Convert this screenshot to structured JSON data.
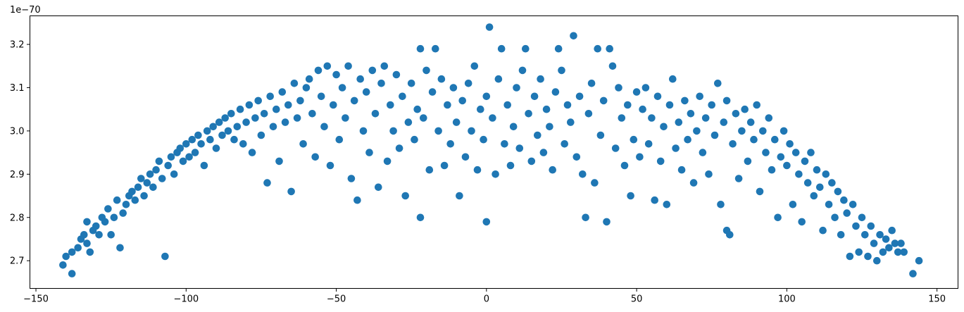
{
  "chart_data": {
    "type": "scatter",
    "title": "",
    "xlabel": "",
    "ylabel": "",
    "y_offset_label": "1e−70",
    "xlim": [
      -152,
      157
    ],
    "ylim": [
      2.636,
      3.266
    ],
    "x_ticks": [
      -150,
      -100,
      -50,
      0,
      50,
      100,
      150
    ],
    "x_tick_labels": [
      "−150",
      "−100",
      "−50",
      "0",
      "50",
      "100",
      "150"
    ],
    "y_ticks": [
      2.7,
      2.8,
      2.9,
      3.0,
      3.1,
      3.2
    ],
    "y_tick_labels": [
      "2.7",
      "2.8",
      "2.9",
      "3.0",
      "3.1",
      "3.2"
    ],
    "grid": false,
    "marker_color": "#1f77b4",
    "series": [
      {
        "points": [
          [
            -141,
            2.69
          ],
          [
            -140,
            2.71
          ],
          [
            -138,
            2.67
          ],
          [
            -138,
            2.72
          ],
          [
            -136,
            2.73
          ],
          [
            -135,
            2.75
          ],
          [
            -134,
            2.76
          ],
          [
            -133,
            2.74
          ],
          [
            -133,
            2.79
          ],
          [
            -132,
            2.72
          ],
          [
            -131,
            2.77
          ],
          [
            -130,
            2.78
          ],
          [
            -129,
            2.76
          ],
          [
            -128,
            2.8
          ],
          [
            -127,
            2.79
          ],
          [
            -126,
            2.82
          ],
          [
            -125,
            2.76
          ],
          [
            -124,
            2.8
          ],
          [
            -123,
            2.84
          ],
          [
            -122,
            2.73
          ],
          [
            -121,
            2.81
          ],
          [
            -120,
            2.83
          ],
          [
            -119,
            2.85
          ],
          [
            -118,
            2.86
          ],
          [
            -117,
            2.84
          ],
          [
            -116,
            2.87
          ],
          [
            -115,
            2.89
          ],
          [
            -114,
            2.85
          ],
          [
            -113,
            2.88
          ],
          [
            -112,
            2.9
          ],
          [
            -111,
            2.87
          ],
          [
            -110,
            2.91
          ],
          [
            -109,
            2.93
          ],
          [
            -108,
            2.89
          ],
          [
            -107,
            2.71
          ],
          [
            -106,
            2.92
          ],
          [
            -105,
            2.94
          ],
          [
            -104,
            2.9
          ],
          [
            -103,
            2.95
          ],
          [
            -102,
            2.96
          ],
          [
            -101,
            2.93
          ],
          [
            -100,
            2.97
          ],
          [
            -99,
            2.94
          ],
          [
            -98,
            2.98
          ],
          [
            -97,
            2.95
          ],
          [
            -96,
            2.99
          ],
          [
            -95,
            2.97
          ],
          [
            -94,
            2.92
          ],
          [
            -93,
            3.0
          ],
          [
            -92,
            2.98
          ],
          [
            -91,
            3.01
          ],
          [
            -90,
            2.96
          ],
          [
            -89,
            3.02
          ],
          [
            -88,
            2.99
          ],
          [
            -87,
            3.03
          ],
          [
            -86,
            3.0
          ],
          [
            -85,
            3.04
          ],
          [
            -84,
            2.98
          ],
          [
            -83,
            3.01
          ],
          [
            -82,
            3.05
          ],
          [
            -81,
            2.97
          ],
          [
            -80,
            3.02
          ],
          [
            -79,
            3.06
          ],
          [
            -78,
            2.95
          ],
          [
            -77,
            3.03
          ],
          [
            -76,
            3.07
          ],
          [
            -75,
            2.99
          ],
          [
            -74,
            3.04
          ],
          [
            -73,
            2.88
          ],
          [
            -72,
            3.08
          ],
          [
            -71,
            3.01
          ],
          [
            -70,
            3.05
          ],
          [
            -69,
            2.93
          ],
          [
            -68,
            3.09
          ],
          [
            -67,
            3.02
          ],
          [
            -66,
            3.06
          ],
          [
            -65,
            2.86
          ],
          [
            -64,
            3.11
          ],
          [
            -63,
            3.03
          ],
          [
            -62,
            3.07
          ],
          [
            -61,
            2.97
          ],
          [
            -60,
            3.1
          ],
          [
            -59,
            3.12
          ],
          [
            -58,
            3.04
          ],
          [
            -57,
            2.94
          ],
          [
            -56,
            3.14
          ],
          [
            -55,
            3.08
          ],
          [
            -54,
            3.01
          ],
          [
            -53,
            3.15
          ],
          [
            -52,
            2.92
          ],
          [
            -51,
            3.06
          ],
          [
            -50,
            3.13
          ],
          [
            -49,
            2.98
          ],
          [
            -48,
            3.1
          ],
          [
            -47,
            3.03
          ],
          [
            -46,
            3.15
          ],
          [
            -45,
            2.89
          ],
          [
            -44,
            3.07
          ],
          [
            -43,
            2.84
          ],
          [
            -42,
            3.12
          ],
          [
            -41,
            3.0
          ],
          [
            -40,
            3.09
          ],
          [
            -39,
            2.95
          ],
          [
            -38,
            3.14
          ],
          [
            -37,
            3.04
          ],
          [
            -36,
            2.87
          ],
          [
            -35,
            3.11
          ],
          [
            -34,
            3.15
          ],
          [
            -33,
            2.93
          ],
          [
            -32,
            3.06
          ],
          [
            -31,
            3.0
          ],
          [
            -30,
            3.13
          ],
          [
            -29,
            2.96
          ],
          [
            -28,
            3.08
          ],
          [
            -27,
            2.85
          ],
          [
            -26,
            3.02
          ],
          [
            -25,
            3.11
          ],
          [
            -24,
            2.98
          ],
          [
            -23,
            3.05
          ],
          [
            -22,
            3.19
          ],
          [
            -22,
            2.8
          ],
          [
            -21,
            3.03
          ],
          [
            -20,
            3.14
          ],
          [
            -19,
            2.91
          ],
          [
            -18,
            3.09
          ],
          [
            -17,
            3.19
          ],
          [
            -16,
            3.0
          ],
          [
            -15,
            3.12
          ],
          [
            -14,
            2.92
          ],
          [
            -13,
            3.06
          ],
          [
            -12,
            2.97
          ],
          [
            -11,
            3.1
          ],
          [
            -10,
            3.02
          ],
          [
            -9,
            2.85
          ],
          [
            -8,
            3.07
          ],
          [
            -7,
            2.94
          ],
          [
            -6,
            3.11
          ],
          [
            -5,
            3.0
          ],
          [
            -4,
            3.15
          ],
          [
            -3,
            2.91
          ],
          [
            -2,
            3.05
          ],
          [
            -1,
            2.98
          ],
          [
            0,
            3.08
          ],
          [
            0,
            2.79
          ],
          [
            1,
            3.24
          ],
          [
            2,
            3.03
          ],
          [
            3,
            2.9
          ],
          [
            4,
            3.12
          ],
          [
            5,
            3.19
          ],
          [
            6,
            2.97
          ],
          [
            7,
            3.06
          ],
          [
            8,
            2.92
          ],
          [
            9,
            3.01
          ],
          [
            10,
            3.1
          ],
          [
            11,
            2.96
          ],
          [
            12,
            3.14
          ],
          [
            13,
            3.19
          ],
          [
            14,
            3.04
          ],
          [
            15,
            2.93
          ],
          [
            16,
            3.08
          ],
          [
            17,
            2.99
          ],
          [
            18,
            3.12
          ],
          [
            19,
            2.95
          ],
          [
            20,
            3.05
          ],
          [
            21,
            3.01
          ],
          [
            22,
            2.91
          ],
          [
            23,
            3.09
          ],
          [
            24,
            3.19
          ],
          [
            25,
            3.14
          ],
          [
            26,
            2.97
          ],
          [
            27,
            3.06
          ],
          [
            28,
            3.02
          ],
          [
            29,
            3.22
          ],
          [
            30,
            2.94
          ],
          [
            31,
            3.08
          ],
          [
            32,
            2.9
          ],
          [
            33,
            2.8
          ],
          [
            34,
            3.04
          ],
          [
            35,
            3.11
          ],
          [
            36,
            2.88
          ],
          [
            37,
            3.19
          ],
          [
            38,
            2.99
          ],
          [
            39,
            3.07
          ],
          [
            40,
            2.79
          ],
          [
            41,
            3.19
          ],
          [
            42,
            3.15
          ],
          [
            43,
            2.96
          ],
          [
            44,
            3.1
          ],
          [
            45,
            3.03
          ],
          [
            46,
            2.92
          ],
          [
            47,
            3.06
          ],
          [
            48,
            2.85
          ],
          [
            49,
            2.98
          ],
          [
            50,
            3.09
          ],
          [
            51,
            2.94
          ],
          [
            52,
            3.05
          ],
          [
            53,
            3.1
          ],
          [
            54,
            2.97
          ],
          [
            55,
            3.03
          ],
          [
            56,
            2.84
          ],
          [
            57,
            3.08
          ],
          [
            58,
            2.93
          ],
          [
            59,
            3.01
          ],
          [
            60,
            2.83
          ],
          [
            61,
            3.06
          ],
          [
            62,
            3.12
          ],
          [
            63,
            2.96
          ],
          [
            64,
            3.02
          ],
          [
            65,
            2.91
          ],
          [
            66,
            3.07
          ],
          [
            67,
            2.98
          ],
          [
            68,
            3.04
          ],
          [
            69,
            2.88
          ],
          [
            70,
            3.0
          ],
          [
            71,
            3.08
          ],
          [
            72,
            2.95
          ],
          [
            73,
            3.03
          ],
          [
            74,
            2.9
          ],
          [
            75,
            3.06
          ],
          [
            76,
            2.99
          ],
          [
            77,
            3.11
          ],
          [
            78,
            2.83
          ],
          [
            79,
            3.02
          ],
          [
            80,
            2.77
          ],
          [
            80,
            3.07
          ],
          [
            81,
            2.76
          ],
          [
            82,
            2.97
          ],
          [
            83,
            3.04
          ],
          [
            84,
            2.89
          ],
          [
            85,
            3.0
          ],
          [
            86,
            3.05
          ],
          [
            87,
            2.93
          ],
          [
            88,
            3.02
          ],
          [
            89,
            2.98
          ],
          [
            90,
            3.06
          ],
          [
            91,
            2.86
          ],
          [
            92,
            3.0
          ],
          [
            93,
            2.95
          ],
          [
            94,
            3.03
          ],
          [
            95,
            2.91
          ],
          [
            96,
            2.98
          ],
          [
            97,
            2.8
          ],
          [
            98,
            2.94
          ],
          [
            99,
            3.0
          ],
          [
            100,
            2.92
          ],
          [
            101,
            2.97
          ],
          [
            102,
            2.83
          ],
          [
            103,
            2.95
          ],
          [
            104,
            2.9
          ],
          [
            105,
            2.79
          ],
          [
            106,
            2.93
          ],
          [
            107,
            2.88
          ],
          [
            108,
            2.95
          ],
          [
            109,
            2.85
          ],
          [
            110,
            2.91
          ],
          [
            111,
            2.87
          ],
          [
            112,
            2.77
          ],
          [
            113,
            2.9
          ],
          [
            114,
            2.83
          ],
          [
            115,
            2.88
          ],
          [
            116,
            2.8
          ],
          [
            117,
            2.86
          ],
          [
            118,
            2.76
          ],
          [
            119,
            2.84
          ],
          [
            120,
            2.81
          ],
          [
            121,
            2.71
          ],
          [
            122,
            2.83
          ],
          [
            123,
            2.78
          ],
          [
            124,
            2.72
          ],
          [
            125,
            2.8
          ],
          [
            126,
            2.76
          ],
          [
            127,
            2.71
          ],
          [
            128,
            2.78
          ],
          [
            129,
            2.74
          ],
          [
            130,
            2.7
          ],
          [
            131,
            2.76
          ],
          [
            132,
            2.72
          ],
          [
            133,
            2.75
          ],
          [
            134,
            2.73
          ],
          [
            135,
            2.77
          ],
          [
            136,
            2.74
          ],
          [
            137,
            2.72
          ],
          [
            138,
            2.74
          ],
          [
            139,
            2.72
          ],
          [
            142,
            2.67
          ],
          [
            144,
            2.7
          ]
        ]
      }
    ]
  }
}
